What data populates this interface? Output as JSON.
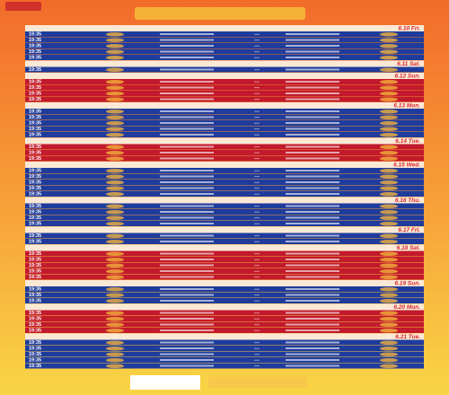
{
  "schedule": {
    "colors": {
      "blue": "#1f3c9c",
      "red": "#c21a2c",
      "strip": "#fbe9d6",
      "date": "#d8272f"
    },
    "days": [
      {
        "date": "6.10 Fri.",
        "color": "blue",
        "rows": [
          "19:35",
          "19:35",
          "19:35",
          "19:35",
          "19:35"
        ]
      },
      {
        "date": "6.11 Sat.",
        "color": "blue",
        "rows": [
          "19:35"
        ]
      },
      {
        "date": "6.12 Sun.",
        "color": "red",
        "rows": [
          "19:35",
          "19:35",
          "19:35",
          "19:35"
        ]
      },
      {
        "date": "6.13 Mon.",
        "color": "blue",
        "rows": [
          "19:35",
          "19:35",
          "19:35",
          "19:35",
          "19:35"
        ]
      },
      {
        "date": "6.14 Tue.",
        "color": "red",
        "rows": [
          "19:35",
          "19:35",
          "19:35"
        ]
      },
      {
        "date": "6.15 Wed.",
        "color": "blue",
        "rows": [
          "19:35",
          "19:35",
          "19:35",
          "19:35",
          "19:35"
        ]
      },
      {
        "date": "6.16 Thu.",
        "color": "blue",
        "rows": [
          "19:35",
          "19:35",
          "19:35",
          "19:35"
        ]
      },
      {
        "date": "6.17 Fri.",
        "color": "blue",
        "rows": [
          "19:35",
          "19:35"
        ]
      },
      {
        "date": "6.18 Sat.",
        "color": "red",
        "rows": [
          "19:35",
          "19:35",
          "19:35",
          "19:35",
          "19:35"
        ]
      },
      {
        "date": "6.19 Sun.",
        "color": "blue",
        "rows": [
          "19:35",
          "19:35",
          "19:35"
        ]
      },
      {
        "date": "6.20 Mon.",
        "color": "red",
        "rows": [
          "19:35",
          "19:35",
          "19:35",
          "19:35"
        ]
      },
      {
        "date": "6.21 Tue.",
        "color": "blue",
        "rows": [
          "19:35",
          "19:35",
          "19:35",
          "19:35",
          "19:35"
        ]
      }
    ]
  }
}
